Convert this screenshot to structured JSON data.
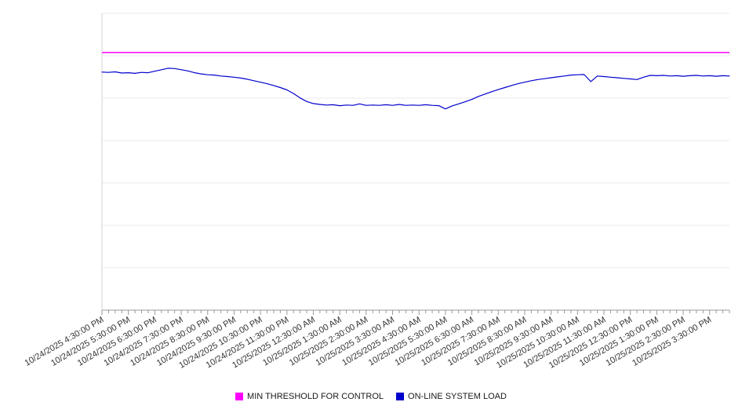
{
  "page": {
    "background": "#ffffff",
    "axis_color": "#999999",
    "gridline_color": "#ebebeb",
    "label_color": "#333333"
  },
  "chart_data": {
    "type": "line",
    "title": "",
    "xlabel": "",
    "ylabel": "",
    "ylim": [
      0,
      100
    ],
    "grid": true,
    "gridline_count": 8,
    "legend_position": "bottom",
    "points_per_label_interval": 4,
    "x_labels": [
      "10/24/2025 4:30:00 PM",
      "10/24/2025 5:30:00 PM",
      "10/24/2025 6:30:00 PM",
      "10/24/2025 7:30:00 PM",
      "10/24/2025 8:30:00 PM",
      "10/24/2025 9:30:00 PM",
      "10/24/2025 10:30:00 PM",
      "10/24/2025 11:30:00 PM",
      "10/25/2025 12:30:00 AM",
      "10/25/2025 1:30:00 AM",
      "10/25/2025 2:30:00 AM",
      "10/25/2025 3:30:00 AM",
      "10/25/2025 4:30:00 AM",
      "10/25/2025 5:30:00 AM",
      "10/25/2025 6:30:00 AM",
      "10/25/2025 7:30:00 AM",
      "10/25/2025 8:30:00 AM",
      "10/25/2025 9:30:00 AM",
      "10/25/2025 10:30:00 AM",
      "10/25/2025 11:30:00 AM",
      "10/25/2025 12:30:00 PM",
      "10/25/2025 1:30:00 PM",
      "10/25/2025 2:30:00 PM",
      "10/25/2025 3:30:00 PM"
    ],
    "series": [
      {
        "name": "MIN THRESHOLD FOR CONTROL",
        "color": "#ff00ff",
        "style": "threshold",
        "value": 86.8
      },
      {
        "name": "ON-LINE SYSTEM LOAD",
        "color": "#0000cd",
        "style": "line",
        "values": [
          80.2,
          80.1,
          80.3,
          79.9,
          80.0,
          79.8,
          80.1,
          80.0,
          80.5,
          81.0,
          81.5,
          81.4,
          81.0,
          80.6,
          80.0,
          79.6,
          79.3,
          79.2,
          78.9,
          78.7,
          78.5,
          78.2,
          77.8,
          77.3,
          76.8,
          76.3,
          75.7,
          75.0,
          74.2,
          73.0,
          71.5,
          70.3,
          69.6,
          69.3,
          69.1,
          69.2,
          68.9,
          69.1,
          69.0,
          69.5,
          69.0,
          69.1,
          69.0,
          69.2,
          69.0,
          69.3,
          69.0,
          69.1,
          69.0,
          69.2,
          69.0,
          68.9,
          67.8,
          68.8,
          69.5,
          70.2,
          71.0,
          72.0,
          72.8,
          73.6,
          74.3,
          75.0,
          75.7,
          76.3,
          76.8,
          77.3,
          77.7,
          78.0,
          78.3,
          78.6,
          78.9,
          79.2,
          79.3,
          79.4,
          77.0,
          78.9,
          78.7,
          78.5,
          78.3,
          78.1,
          77.9,
          77.7,
          78.5,
          79.1,
          79.0,
          79.1,
          78.9,
          79.0,
          78.8,
          79.0,
          79.1,
          78.9,
          79.0,
          78.8,
          79.0,
          78.9
        ]
      }
    ]
  },
  "legend": {
    "items": [
      {
        "label": "MIN THRESHOLD FOR CONTROL",
        "color": "#ff00ff"
      },
      {
        "label": "ON-LINE SYSTEM LOAD",
        "color": "#0000cd"
      }
    ]
  }
}
